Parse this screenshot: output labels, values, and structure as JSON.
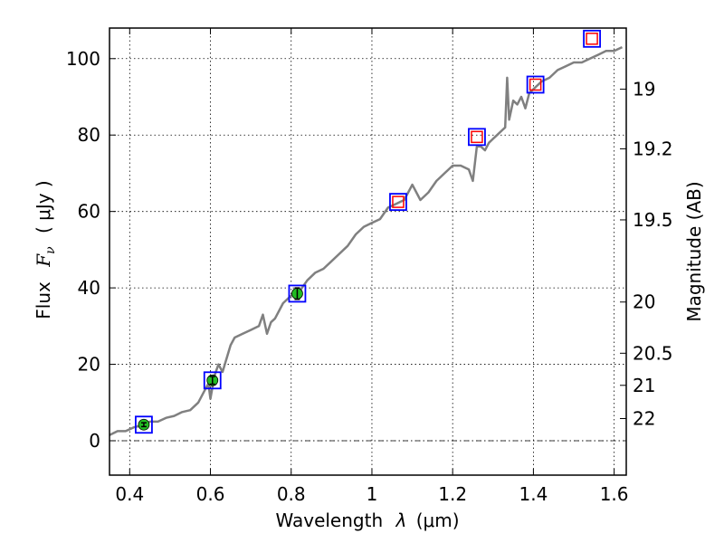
{
  "chart_data": {
    "type": "line",
    "xlabel_text": "Wavelength",
    "xlabel_symbol": "λ",
    "xlabel_unit": "(μm)",
    "ylabel_text": "Flux",
    "ylabel_symbol": "F",
    "ylabel_subscript": "ν",
    "ylabel_unit": "( μJy )",
    "y2label": "Magnitude (AB)",
    "xlim": [
      0.35,
      1.63
    ],
    "ylim": [
      -9,
      108
    ],
    "grid": true,
    "x_ticks": [
      0.4,
      0.6,
      0.8,
      1.0,
      1.2,
      1.4,
      1.6
    ],
    "x_tick_labels": [
      "0.4",
      "0.6",
      "0.8",
      "1",
      "1.2",
      "1.4",
      "1.6"
    ],
    "y_ticks": [
      0,
      20,
      40,
      60,
      80,
      100
    ],
    "y_tick_labels": [
      "0",
      "20",
      "40",
      "60",
      "80",
      "100"
    ],
    "mag_ticks": [
      {
        "flux": 92.0,
        "label": "19"
      },
      {
        "flux": 76.4,
        "label": "19.2"
      },
      {
        "flux": 57.8,
        "label": "19.5"
      },
      {
        "flux": 36.3,
        "label": "20"
      },
      {
        "flux": 22.9,
        "label": "20.5"
      },
      {
        "flux": 14.5,
        "label": "21"
      },
      {
        "flux": 5.8,
        "label": "22"
      }
    ],
    "spectrum": {
      "name": "spectrum",
      "color": "#808080",
      "x": [
        0.35,
        0.37,
        0.39,
        0.41,
        0.43,
        0.45,
        0.47,
        0.49,
        0.51,
        0.53,
        0.55,
        0.57,
        0.585,
        0.595,
        0.6,
        0.61,
        0.62,
        0.63,
        0.65,
        0.66,
        0.68,
        0.7,
        0.72,
        0.73,
        0.74,
        0.75,
        0.76,
        0.78,
        0.8,
        0.82,
        0.84,
        0.86,
        0.88,
        0.9,
        0.92,
        0.94,
        0.96,
        0.98,
        1.0,
        1.02,
        1.04,
        1.06,
        1.08,
        1.1,
        1.12,
        1.14,
        1.16,
        1.18,
        1.2,
        1.22,
        1.24,
        1.25,
        1.26,
        1.27,
        1.28,
        1.29,
        1.3,
        1.31,
        1.32,
        1.33,
        1.335,
        1.34,
        1.35,
        1.36,
        1.37,
        1.38,
        1.39,
        1.4,
        1.42,
        1.44,
        1.46,
        1.48,
        1.5,
        1.52,
        1.54,
        1.56,
        1.58,
        1.6,
        1.62
      ],
      "y": [
        1.5,
        2.5,
        2.5,
        3.5,
        4,
        5,
        5,
        6,
        6.5,
        7.5,
        8,
        10,
        13,
        15,
        11,
        17,
        20,
        18,
        25,
        27,
        28,
        29,
        30,
        33,
        28,
        31,
        32,
        36,
        38,
        39,
        42,
        44,
        45,
        47,
        49,
        51,
        54,
        56,
        57,
        58,
        61,
        62,
        63,
        67,
        63,
        65,
        68,
        70,
        72,
        72,
        71,
        68,
        77,
        77,
        76,
        78,
        79,
        80,
        81,
        82,
        95,
        84,
        89,
        88,
        90,
        87,
        91,
        92,
        94,
        95,
        97,
        98,
        99,
        99,
        100,
        101,
        102,
        102,
        103
      ]
    },
    "measured_points": [
      {
        "x": 0.435,
        "y": 4.2,
        "err": 0.5
      },
      {
        "x": 0.605,
        "y": 15.8,
        "err": 1.0
      },
      {
        "x": 0.815,
        "y": 38.5,
        "err": 1.5
      }
    ],
    "model_points": [
      {
        "x": 0.435,
        "y": 4.2
      },
      {
        "x": 0.605,
        "y": 15.8
      },
      {
        "x": 0.815,
        "y": 38.5
      },
      {
        "x": 1.065,
        "y": 62.5
      },
      {
        "x": 1.26,
        "y": 79.5
      },
      {
        "x": 1.405,
        "y": 93.2
      },
      {
        "x": 1.545,
        "y": 105.2
      }
    ],
    "synthetic_points": [
      {
        "x": 1.065,
        "y": 62.5
      },
      {
        "x": 1.26,
        "y": 79.5
      },
      {
        "x": 1.405,
        "y": 93.2
      },
      {
        "x": 1.545,
        "y": 105.2
      }
    ],
    "colors": {
      "measured": "#22bb22",
      "model_box": "#0000ff",
      "synthetic_box": "#ff0000",
      "grid": "#000000"
    }
  }
}
